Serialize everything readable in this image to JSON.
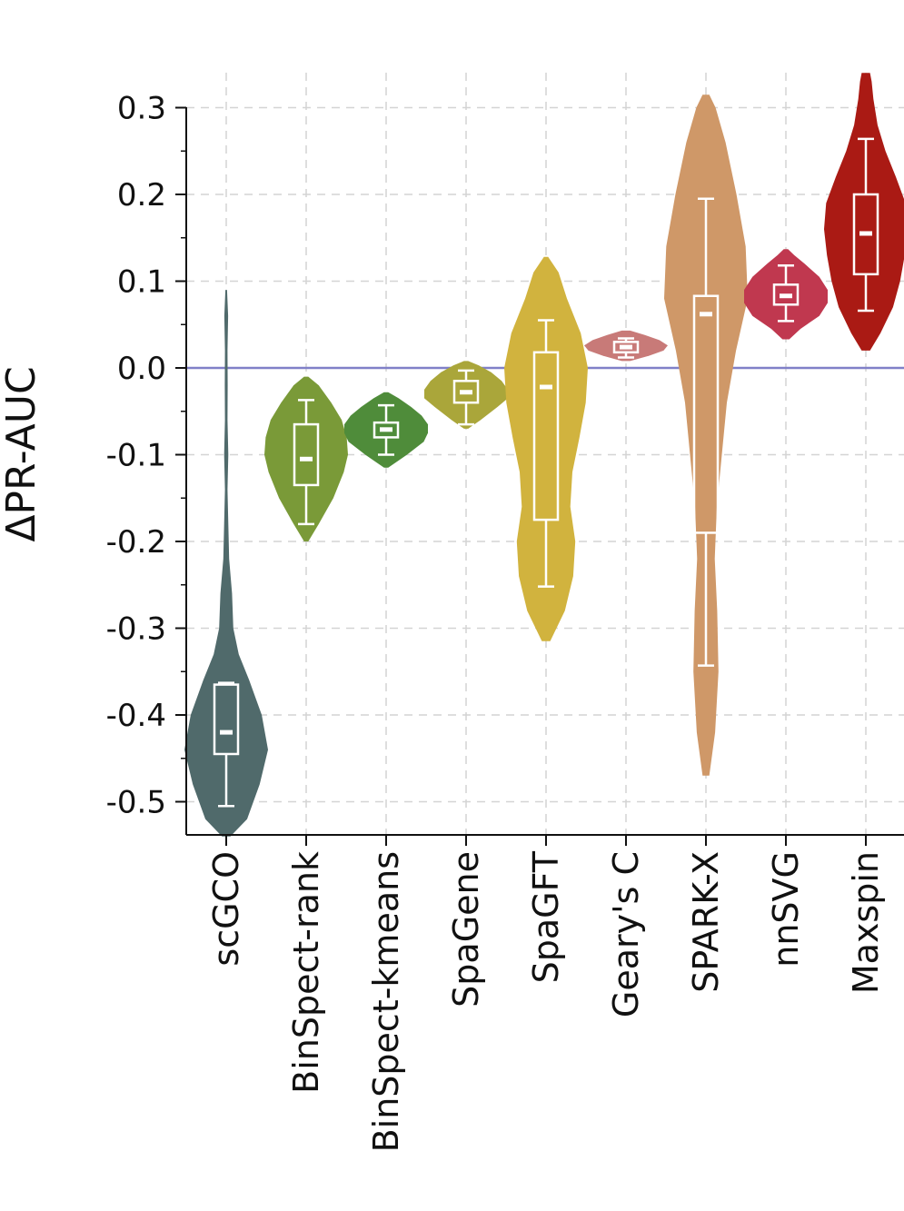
{
  "chart_data": {
    "type": "violin",
    "ylabel": "ΔPR-AUC",
    "xlabel": "",
    "ylim": [
      -0.55,
      0.34
    ],
    "yticks": [
      0.3,
      0.2,
      0.1,
      0.0,
      -0.1,
      -0.2,
      -0.3,
      -0.4,
      -0.5
    ],
    "ytick_labels": [
      "0.3",
      "0.2",
      "0.1",
      "0.0",
      "-0.1",
      "-0.2",
      "-0.3",
      "-0.4",
      "-0.5"
    ],
    "grid": true,
    "reference_line": {
      "y": 0.0,
      "color": "#8080c8"
    },
    "categories": [
      "scGCO",
      "BinSpect-rank",
      "BinSpect-kmeans",
      "SpaGene",
      "SpaGFT",
      "Geary's C",
      "SPARK-X",
      "nnSVG",
      "Maxspin"
    ],
    "series": [
      {
        "category": "scGCO",
        "color": "#506a6b",
        "box": {
          "whisker_low": -0.505,
          "q1": -0.445,
          "median": -0.42,
          "q3": -0.365,
          "whisker_high": -0.363
        },
        "density": [
          [
            -0.54,
            0.1
          ],
          [
            -0.52,
            0.5
          ],
          [
            -0.48,
            0.8
          ],
          [
            -0.44,
            1.0
          ],
          [
            -0.4,
            0.85
          ],
          [
            -0.36,
            0.55
          ],
          [
            -0.33,
            0.3
          ],
          [
            -0.3,
            0.17
          ],
          [
            -0.26,
            0.14
          ],
          [
            -0.22,
            0.07
          ],
          [
            -0.18,
            0.05
          ],
          [
            -0.14,
            0.03
          ],
          [
            -0.1,
            0.05
          ],
          [
            -0.06,
            0.03
          ],
          [
            -0.02,
            0.035
          ],
          [
            0.02,
            0.03
          ],
          [
            0.06,
            0.045
          ],
          [
            0.09,
            0.02
          ]
        ]
      },
      {
        "category": "BinSpect-rank",
        "color": "#7a9a38",
        "box": {
          "whisker_low": -0.18,
          "q1": -0.135,
          "median": -0.105,
          "q3": -0.065,
          "whisker_high": -0.037
        },
        "density": [
          [
            -0.2,
            0.05
          ],
          [
            -0.18,
            0.3
          ],
          [
            -0.15,
            0.65
          ],
          [
            -0.12,
            0.9
          ],
          [
            -0.1,
            1.0
          ],
          [
            -0.08,
            0.97
          ],
          [
            -0.06,
            0.85
          ],
          [
            -0.04,
            0.6
          ],
          [
            -0.02,
            0.3
          ],
          [
            -0.01,
            0.05
          ]
        ]
      },
      {
        "category": "BinSpect-kmeans",
        "color": "#4f8c3a",
        "box": {
          "whisker_low": -0.1,
          "q1": -0.08,
          "median": -0.071,
          "q3": -0.063,
          "whisker_high": -0.043
        },
        "density": [
          [
            -0.115,
            0.05
          ],
          [
            -0.1,
            0.5
          ],
          [
            -0.085,
            0.9
          ],
          [
            -0.075,
            1.0
          ],
          [
            -0.065,
            1.0
          ],
          [
            -0.055,
            0.85
          ],
          [
            -0.045,
            0.6
          ],
          [
            -0.035,
            0.3
          ],
          [
            -0.028,
            0.05
          ]
        ]
      },
      {
        "category": "SpaGene",
        "color": "#aaa63a",
        "box": {
          "whisker_low": -0.065,
          "q1": -0.04,
          "median": -0.028,
          "q3": -0.015,
          "whisker_high": -0.003
        },
        "density": [
          [
            -0.07,
            0.05
          ],
          [
            -0.06,
            0.35
          ],
          [
            -0.045,
            0.75
          ],
          [
            -0.035,
            1.0
          ],
          [
            -0.025,
            1.0
          ],
          [
            -0.015,
            0.85
          ],
          [
            -0.005,
            0.6
          ],
          [
            0.003,
            0.3
          ],
          [
            0.008,
            0.05
          ]
        ]
      },
      {
        "category": "SpaGFT",
        "color": "#d1b33e",
        "box": {
          "whisker_low": -0.252,
          "q1": -0.175,
          "median": -0.022,
          "q3": 0.018,
          "whisker_high": 0.055
        },
        "density": [
          [
            -0.315,
            0.1
          ],
          [
            -0.28,
            0.45
          ],
          [
            -0.24,
            0.65
          ],
          [
            -0.2,
            0.7
          ],
          [
            -0.16,
            0.58
          ],
          [
            -0.12,
            0.63
          ],
          [
            -0.08,
            0.8
          ],
          [
            -0.04,
            0.95
          ],
          [
            0.0,
            1.0
          ],
          [
            0.04,
            0.83
          ],
          [
            0.08,
            0.5
          ],
          [
            0.11,
            0.3
          ],
          [
            0.128,
            0.05
          ]
        ]
      },
      {
        "category": "Geary's C",
        "color": "#c87a78",
        "box": {
          "whisker_low": 0.012,
          "q1": 0.018,
          "median": 0.024,
          "q3": 0.03,
          "whisker_high": 0.034
        },
        "density": [
          [
            0.008,
            0.1
          ],
          [
            0.014,
            0.55
          ],
          [
            0.02,
            0.9
          ],
          [
            0.026,
            1.0
          ],
          [
            0.032,
            0.8
          ],
          [
            0.038,
            0.45
          ],
          [
            0.043,
            0.1
          ]
        ]
      },
      {
        "category": "SPARK-X",
        "color": "#cf9868",
        "box": {
          "whisker_low": -0.343,
          "q1": -0.19,
          "median": 0.062,
          "q3": 0.083,
          "whisker_high": 0.195
        },
        "density": [
          [
            -0.47,
            0.08
          ],
          [
            -0.42,
            0.22
          ],
          [
            -0.35,
            0.3
          ],
          [
            -0.28,
            0.27
          ],
          [
            -0.22,
            0.21
          ],
          [
            -0.16,
            0.26
          ],
          [
            -0.1,
            0.38
          ],
          [
            -0.04,
            0.5
          ],
          [
            0.02,
            0.72
          ],
          [
            0.08,
            1.0
          ],
          [
            0.14,
            0.95
          ],
          [
            0.2,
            0.73
          ],
          [
            0.26,
            0.47
          ],
          [
            0.3,
            0.23
          ],
          [
            0.315,
            0.08
          ]
        ]
      },
      {
        "category": "nnSVG",
        "color": "#c0384f",
        "box": {
          "whisker_low": 0.054,
          "q1": 0.073,
          "median": 0.083,
          "q3": 0.096,
          "whisker_high": 0.118
        },
        "density": [
          [
            0.033,
            0.08
          ],
          [
            0.045,
            0.35
          ],
          [
            0.06,
            0.8
          ],
          [
            0.075,
            1.0
          ],
          [
            0.09,
            1.0
          ],
          [
            0.105,
            0.8
          ],
          [
            0.12,
            0.45
          ],
          [
            0.13,
            0.2
          ],
          [
            0.137,
            0.05
          ]
        ]
      },
      {
        "category": "Maxspin",
        "color": "#aa1a14",
        "box": {
          "whisker_low": 0.066,
          "q1": 0.108,
          "median": 0.155,
          "q3": 0.2,
          "whisker_high": 0.264
        },
        "density": [
          [
            0.02,
            0.1
          ],
          [
            0.04,
            0.35
          ],
          [
            0.07,
            0.65
          ],
          [
            0.1,
            0.82
          ],
          [
            0.13,
            0.93
          ],
          [
            0.16,
            1.0
          ],
          [
            0.19,
            0.95
          ],
          [
            0.22,
            0.72
          ],
          [
            0.25,
            0.47
          ],
          [
            0.28,
            0.28
          ],
          [
            0.31,
            0.18
          ],
          [
            0.33,
            0.14
          ],
          [
            0.34,
            0.1
          ]
        ]
      }
    ]
  }
}
